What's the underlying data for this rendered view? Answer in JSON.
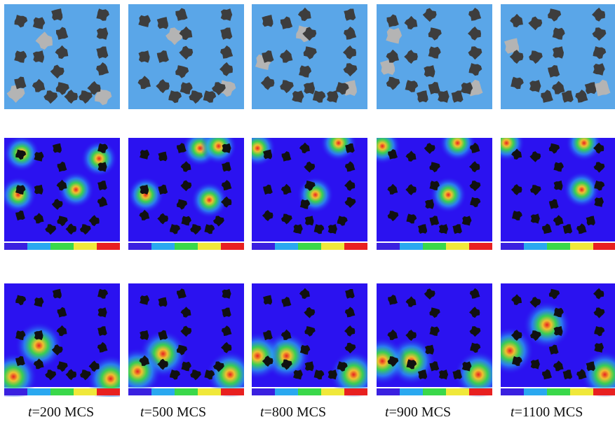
{
  "figure": {
    "row_types": [
      "domain",
      "field_a",
      "field_b"
    ],
    "columns": [
      {
        "t_prefix": "t",
        "t_rest": "=200 MCS",
        "irregular": 2,
        "hot_b": [
          [
            0.15,
            0.15
          ],
          [
            0.82,
            0.2
          ],
          [
            0.12,
            0.55
          ],
          [
            0.62,
            0.5
          ]
        ],
        "hot_c": [
          [
            0.3,
            0.6
          ],
          [
            0.08,
            0.9
          ],
          [
            0.92,
            0.92
          ]
        ],
        "grey": [
          [
            0.35,
            0.35
          ],
          [
            0.1,
            0.85
          ],
          [
            0.85,
            0.88
          ]
        ]
      },
      {
        "t_prefix": "t",
        "t_rest": "=500 MCS",
        "irregular": 3,
        "hot_b": [
          [
            0.62,
            0.1
          ],
          [
            0.78,
            0.08
          ],
          [
            0.15,
            0.55
          ],
          [
            0.7,
            0.6
          ]
        ],
        "hot_c": [
          [
            0.3,
            0.68
          ],
          [
            0.08,
            0.85
          ],
          [
            0.88,
            0.88
          ]
        ],
        "grey": [
          [
            0.4,
            0.3
          ],
          [
            0.85,
            0.8
          ]
        ]
      },
      {
        "t_prefix": "t",
        "t_rest": "=800 MCS",
        "irregular": 4,
        "hot_b": [
          [
            0.05,
            0.1
          ],
          [
            0.75,
            0.05
          ],
          [
            0.55,
            0.55
          ]
        ],
        "hot_c": [
          [
            0.3,
            0.7
          ],
          [
            0.05,
            0.7
          ],
          [
            0.88,
            0.88
          ]
        ],
        "grey": [
          [
            0.45,
            0.28
          ],
          [
            0.1,
            0.55
          ],
          [
            0.85,
            0.8
          ]
        ]
      },
      {
        "t_prefix": "t",
        "t_rest": "=900 MCS",
        "irregular": 5,
        "hot_b": [
          [
            0.05,
            0.08
          ],
          [
            0.7,
            0.05
          ],
          [
            0.62,
            0.55
          ]
        ],
        "hot_c": [
          [
            0.3,
            0.75
          ],
          [
            0.05,
            0.75
          ],
          [
            0.88,
            0.88
          ]
        ],
        "grey": [
          [
            0.15,
            0.3
          ],
          [
            0.1,
            0.6
          ],
          [
            0.85,
            0.8
          ]
        ]
      },
      {
        "t_prefix": "t",
        "t_rest": "=1100 MCS",
        "irregular": 6,
        "hot_b": [
          [
            0.05,
            0.05
          ],
          [
            0.72,
            0.05
          ],
          [
            0.7,
            0.5
          ]
        ],
        "hot_c": [
          [
            0.08,
            0.65
          ],
          [
            0.4,
            0.4
          ],
          [
            0.9,
            0.88
          ]
        ],
        "grey": [
          [
            0.1,
            0.4
          ],
          [
            0.88,
            0.8
          ]
        ]
      }
    ],
    "colors": {
      "domain_bg": "#5aa6e8",
      "cell": "#3d3d3d",
      "grey_region": "#b4b4b4",
      "field_bg": "#2b12f0",
      "legend": [
        "#3a20e0",
        "#2aa8f0",
        "#3ad84a",
        "#f0e83a",
        "#e82020"
      ]
    }
  }
}
